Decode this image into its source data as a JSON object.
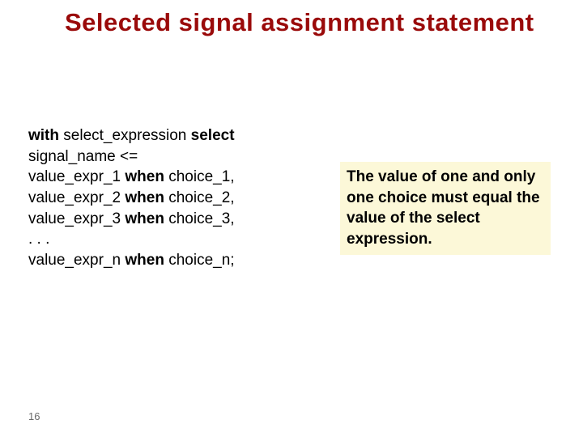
{
  "title": {
    "text": "Selected signal assignment statement",
    "color": "#9a0a0a",
    "fontsize": 31
  },
  "code": {
    "fontsize": 19,
    "color": "#000000",
    "lines": [
      {
        "segments": [
          {
            "t": "with ",
            "kw": true
          },
          {
            "t": "select_expression "
          },
          {
            "t": "select",
            "kw": true
          }
        ]
      },
      {
        "segments": [
          {
            "t": "signal_name <="
          }
        ]
      },
      {
        "segments": [
          {
            "t": "value_expr_1 "
          },
          {
            "t": "when ",
            "kw": true
          },
          {
            "t": "choice_1,"
          }
        ]
      },
      {
        "segments": [
          {
            "t": "value_expr_2 "
          },
          {
            "t": "when ",
            "kw": true
          },
          {
            "t": "choice_2,"
          }
        ]
      },
      {
        "segments": [
          {
            "t": "value_expr_3 "
          },
          {
            "t": "when ",
            "kw": true
          },
          {
            "t": "choice_3,"
          }
        ]
      },
      {
        "segments": [
          {
            "t": ". . ."
          }
        ]
      },
      {
        "segments": [
          {
            "t": "value_expr_n "
          },
          {
            "t": "when ",
            "kw": true
          },
          {
            "t": "choice_n;"
          }
        ]
      }
    ]
  },
  "note": {
    "text": "The value of one and only one choice must equal the value of the select expression.",
    "background": "#fcf8d8",
    "color": "#000000",
    "fontsize": 19
  },
  "page_number": "16"
}
